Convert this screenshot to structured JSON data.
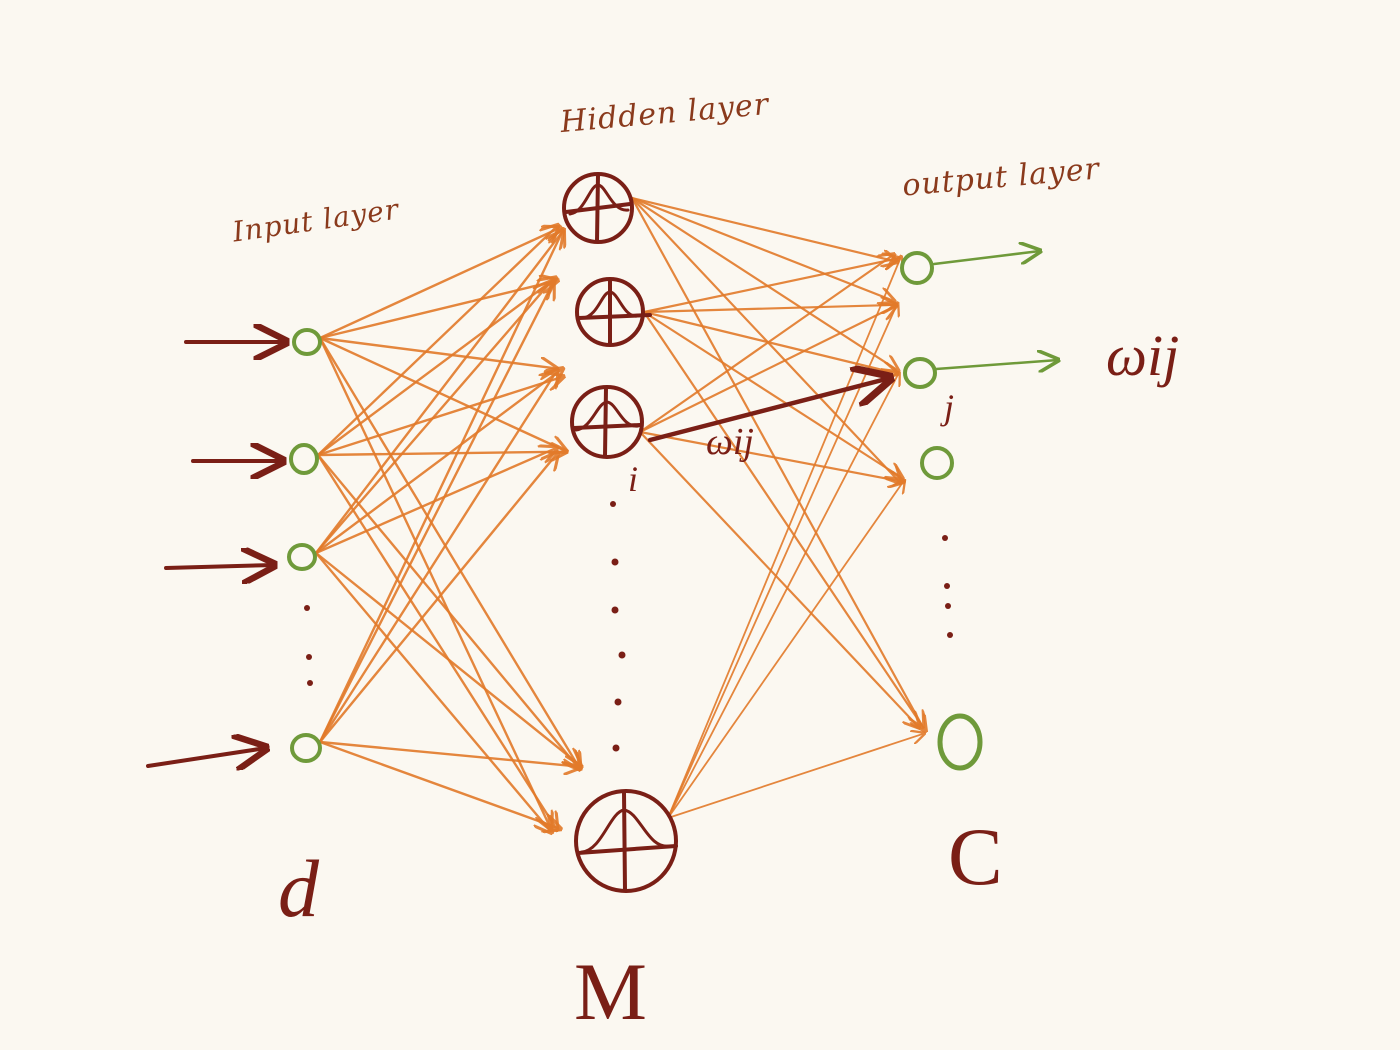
{
  "labels": {
    "input_layer": "Input layer",
    "hidden_layer": "Hidden layer",
    "output_layer": "output layer",
    "input_count": "d",
    "hidden_count": "M",
    "output_count": "C",
    "weight_small": "ωij",
    "weight_big": "ωij",
    "index_i": "i",
    "index_j": "j"
  },
  "colors": {
    "paper": "#fbf8f1",
    "ink_brown": "#7a1f16",
    "edge_orange": "#e27a2a",
    "node_green": "#6f9a3a"
  },
  "nodes": {
    "input": [
      "input-1",
      "input-2",
      "input-3",
      "input-d"
    ],
    "hidden": [
      "hidden-1",
      "hidden-2",
      "hidden-i",
      "hidden-M"
    ],
    "output": [
      "output-1",
      "output-j",
      "output-3",
      "output-C"
    ]
  }
}
